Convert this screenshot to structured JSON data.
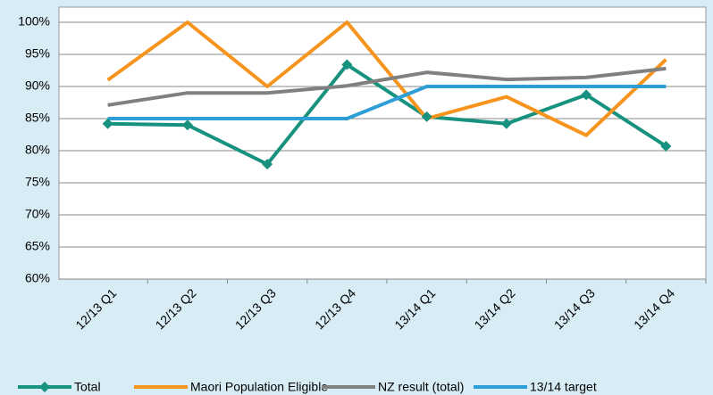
{
  "chart_data": {
    "type": "line",
    "categories": [
      "12/13 Q1",
      "12/13 Q2",
      "12/13 Q3",
      "12/13 Q4",
      "13/14 Q1",
      "13/14 Q2",
      "13/14 Q3",
      "13/14 Q4"
    ],
    "series": [
      {
        "name": "Total",
        "color": "#16927e",
        "marker": "diamond",
        "values": [
          84.2,
          84.0,
          77.9,
          93.4,
          85.3,
          84.2,
          88.7,
          80.7
        ]
      },
      {
        "name": "Maori Population Eligible",
        "color": "#f7941d",
        "values": [
          91.0,
          100.0,
          90.0,
          100.0,
          85.0,
          88.4,
          82.4,
          94.2
        ]
      },
      {
        "name": "NZ result (total)",
        "color": "#808080",
        "values": [
          87.1,
          89.0,
          89.0,
          90.1,
          92.2,
          91.1,
          91.4,
          92.8
        ]
      },
      {
        "name": "13/14 target",
        "color": "#2e9fd6",
        "values": [
          85,
          85,
          85,
          85,
          90,
          90,
          90,
          90
        ]
      }
    ],
    "ylim": [
      60,
      100
    ],
    "yticks": [
      {
        "value": 60,
        "label": "60%"
      },
      {
        "value": 65,
        "label": "65%"
      },
      {
        "value": 70,
        "label": "70%"
      },
      {
        "value": 75,
        "label": "75%"
      },
      {
        "value": 80,
        "label": "80%"
      },
      {
        "value": 85,
        "label": "85%"
      },
      {
        "value": 90,
        "label": "90%"
      },
      {
        "value": 95,
        "label": "95%"
      },
      {
        "value": 100,
        "label": "100%"
      }
    ],
    "grid": true,
    "legend": "bottom"
  }
}
